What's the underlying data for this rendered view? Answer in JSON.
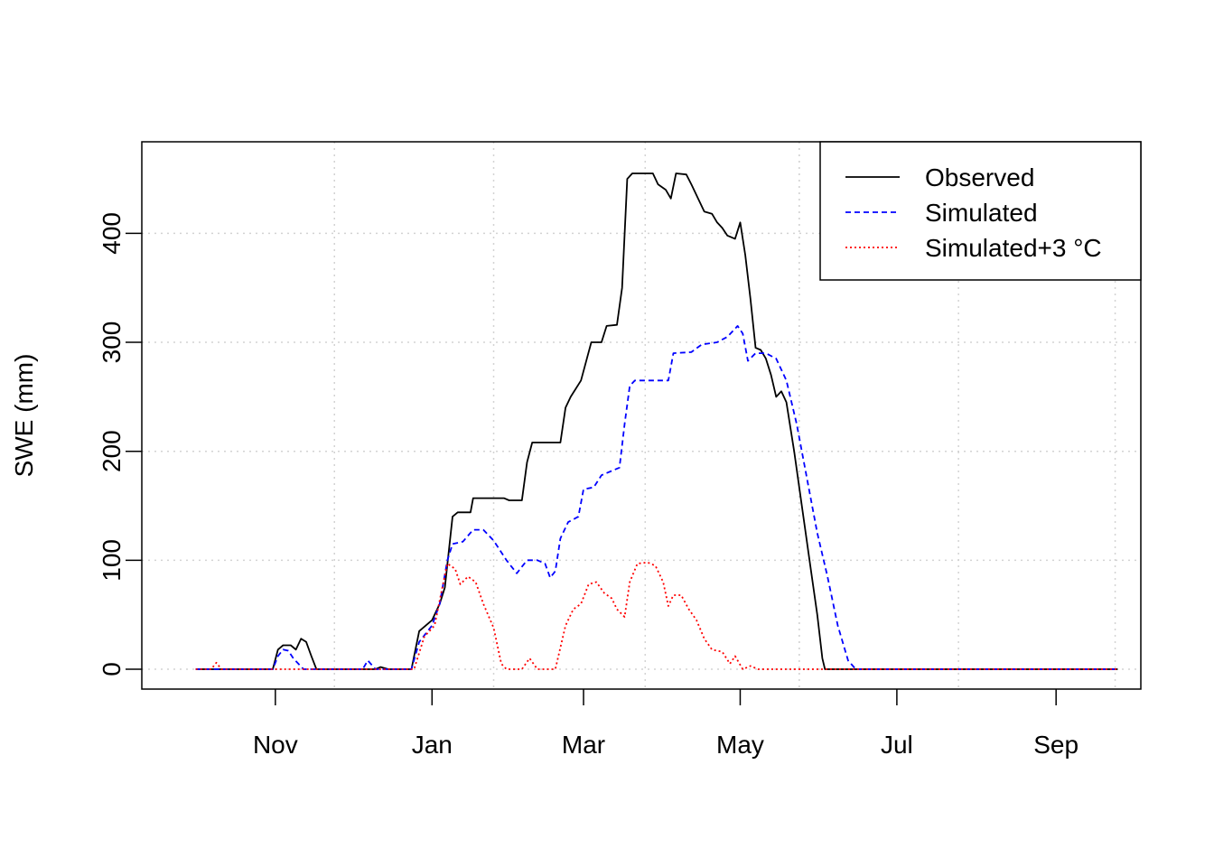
{
  "chart_data": {
    "type": "line",
    "xlabel": "",
    "ylabel": "SWE (mm)",
    "ylim": [
      0,
      460
    ],
    "yticks": [
      0,
      100,
      200,
      300,
      400
    ],
    "xlim": [
      "2000-09-10",
      "2001-10-04"
    ],
    "x_ticks": [
      {
        "label": "Nov",
        "date": "2000-11-01"
      },
      {
        "label": "Jan",
        "date": "2001-01-01"
      },
      {
        "label": "Mar",
        "date": "2001-03-01"
      },
      {
        "label": "May",
        "date": "2001-05-01"
      },
      {
        "label": "Jul",
        "date": "2001-07-01"
      },
      {
        "label": "Sep",
        "date": "2001-09-01"
      }
    ],
    "grid": true,
    "legend_position": "top-right",
    "series": [
      {
        "name": "Observed",
        "color": "#000000",
        "dash": "solid",
        "points": [
          [
            "2000-10-01",
            0
          ],
          [
            "2000-10-31",
            0
          ],
          [
            "2000-11-02",
            18
          ],
          [
            "2000-11-04",
            22
          ],
          [
            "2000-11-07",
            22
          ],
          [
            "2000-11-09",
            18
          ],
          [
            "2000-11-11",
            28
          ],
          [
            "2000-11-13",
            25
          ],
          [
            "2000-11-15",
            12
          ],
          [
            "2000-11-17",
            0
          ],
          [
            "2000-12-10",
            0
          ],
          [
            "2000-12-12",
            2
          ],
          [
            "2000-12-15",
            0
          ],
          [
            "2000-12-18",
            0
          ],
          [
            "2000-12-24",
            0
          ],
          [
            "2000-12-27",
            35
          ],
          [
            "2001-01-01",
            45
          ],
          [
            "2001-01-04",
            60
          ],
          [
            "2001-01-06",
            75
          ],
          [
            "2001-01-09",
            140
          ],
          [
            "2001-01-11",
            144
          ],
          [
            "2001-01-16",
            144
          ],
          [
            "2001-01-17",
            157
          ],
          [
            "2001-01-29",
            157
          ],
          [
            "2001-01-31",
            155
          ],
          [
            "2001-02-05",
            155
          ],
          [
            "2001-02-07",
            190
          ],
          [
            "2001-02-09",
            208
          ],
          [
            "2001-02-20",
            208
          ],
          [
            "2001-02-22",
            240
          ],
          [
            "2001-02-24",
            250
          ],
          [
            "2001-02-28",
            265
          ],
          [
            "2001-03-04",
            300
          ],
          [
            "2001-03-08",
            300
          ],
          [
            "2001-03-10",
            315
          ],
          [
            "2001-03-14",
            316
          ],
          [
            "2001-03-16",
            350
          ],
          [
            "2001-03-18",
            450
          ],
          [
            "2001-03-20",
            455
          ],
          [
            "2001-03-28",
            455
          ],
          [
            "2001-03-30",
            445
          ],
          [
            "2001-04-02",
            440
          ],
          [
            "2001-04-04",
            432
          ],
          [
            "2001-04-06",
            455
          ],
          [
            "2001-04-10",
            454
          ],
          [
            "2001-04-12",
            445
          ],
          [
            "2001-04-15",
            430
          ],
          [
            "2001-04-17",
            420
          ],
          [
            "2001-04-20",
            418
          ],
          [
            "2001-04-22",
            410
          ],
          [
            "2001-04-24",
            405
          ],
          [
            "2001-04-26",
            398
          ],
          [
            "2001-04-29",
            395
          ],
          [
            "2001-05-01",
            410
          ],
          [
            "2001-05-03",
            380
          ],
          [
            "2001-05-05",
            340
          ],
          [
            "2001-05-07",
            295
          ],
          [
            "2001-05-09",
            293
          ],
          [
            "2001-05-11",
            285
          ],
          [
            "2001-05-13",
            270
          ],
          [
            "2001-05-15",
            250
          ],
          [
            "2001-05-17",
            255
          ],
          [
            "2001-05-19",
            245
          ],
          [
            "2001-05-22",
            200
          ],
          [
            "2001-05-25",
            150
          ],
          [
            "2001-05-28",
            100
          ],
          [
            "2001-05-31",
            50
          ],
          [
            "2001-06-02",
            10
          ],
          [
            "2001-06-03",
            0
          ],
          [
            "2001-09-25",
            0
          ]
        ]
      },
      {
        "name": "Simulated",
        "color": "#0000ff",
        "dash": "dashed",
        "points": [
          [
            "2000-10-01",
            0
          ],
          [
            "2000-10-31",
            0
          ],
          [
            "2000-11-02",
            12
          ],
          [
            "2000-11-04",
            18
          ],
          [
            "2000-11-06",
            17
          ],
          [
            "2000-11-08",
            10
          ],
          [
            "2000-11-10",
            5
          ],
          [
            "2000-11-12",
            0
          ],
          [
            "2000-12-05",
            0
          ],
          [
            "2000-12-07",
            8
          ],
          [
            "2000-12-10",
            0
          ],
          [
            "2000-12-24",
            0
          ],
          [
            "2000-12-27",
            25
          ],
          [
            "2001-01-01",
            40
          ],
          [
            "2001-01-04",
            60
          ],
          [
            "2001-01-07",
            100
          ],
          [
            "2001-01-09",
            115
          ],
          [
            "2001-01-13",
            117
          ],
          [
            "2001-01-17",
            128
          ],
          [
            "2001-01-21",
            128
          ],
          [
            "2001-01-25",
            118
          ],
          [
            "2001-01-30",
            100
          ],
          [
            "2001-02-03",
            88
          ],
          [
            "2001-02-07",
            100
          ],
          [
            "2001-02-11",
            100
          ],
          [
            "2001-02-14",
            97
          ],
          [
            "2001-02-16",
            84
          ],
          [
            "2001-02-18",
            90
          ],
          [
            "2001-02-20",
            120
          ],
          [
            "2001-02-23",
            135
          ],
          [
            "2001-02-27",
            140
          ],
          [
            "2001-03-01",
            165
          ],
          [
            "2001-03-05",
            167
          ],
          [
            "2001-03-08",
            178
          ],
          [
            "2001-03-12",
            182
          ],
          [
            "2001-03-15",
            185
          ],
          [
            "2001-03-17",
            225
          ],
          [
            "2001-03-19",
            260
          ],
          [
            "2001-03-21",
            265
          ],
          [
            "2001-03-28",
            265
          ],
          [
            "2001-04-03",
            265
          ],
          [
            "2001-04-05",
            290
          ],
          [
            "2001-04-12",
            291
          ],
          [
            "2001-04-16",
            298
          ],
          [
            "2001-04-22",
            300
          ],
          [
            "2001-04-26",
            305
          ],
          [
            "2001-04-28",
            310
          ],
          [
            "2001-04-30",
            315
          ],
          [
            "2001-05-02",
            308
          ],
          [
            "2001-05-04",
            283
          ],
          [
            "2001-05-07",
            290
          ],
          [
            "2001-05-11",
            290
          ],
          [
            "2001-05-15",
            285
          ],
          [
            "2001-05-19",
            265
          ],
          [
            "2001-05-23",
            225
          ],
          [
            "2001-05-27",
            175
          ],
          [
            "2001-05-31",
            125
          ],
          [
            "2001-06-04",
            85
          ],
          [
            "2001-06-08",
            40
          ],
          [
            "2001-06-12",
            8
          ],
          [
            "2001-06-15",
            0
          ],
          [
            "2001-09-25",
            0
          ]
        ]
      },
      {
        "name": "Simulated+3 °C",
        "color": "#ff0000",
        "dash": "dotted",
        "points": [
          [
            "2000-10-01",
            0
          ],
          [
            "2000-10-07",
            0
          ],
          [
            "2000-10-09",
            6
          ],
          [
            "2000-10-11",
            0
          ],
          [
            "2000-12-25",
            0
          ],
          [
            "2000-12-29",
            30
          ],
          [
            "2001-01-02",
            40
          ],
          [
            "2001-01-05",
            75
          ],
          [
            "2001-01-07",
            97
          ],
          [
            "2001-01-10",
            92
          ],
          [
            "2001-01-12",
            78
          ],
          [
            "2001-01-15",
            85
          ],
          [
            "2001-01-18",
            80
          ],
          [
            "2001-01-21",
            60
          ],
          [
            "2001-01-25",
            38
          ],
          [
            "2001-01-28",
            5
          ],
          [
            "2001-01-30",
            0
          ],
          [
            "2001-02-05",
            0
          ],
          [
            "2001-02-08",
            10
          ],
          [
            "2001-02-11",
            0
          ],
          [
            "2001-02-18",
            0
          ],
          [
            "2001-02-22",
            40
          ],
          [
            "2001-02-25",
            55
          ],
          [
            "2001-02-28",
            60
          ],
          [
            "2001-03-03",
            78
          ],
          [
            "2001-03-06",
            80
          ],
          [
            "2001-03-09",
            70
          ],
          [
            "2001-03-12",
            65
          ],
          [
            "2001-03-14",
            55
          ],
          [
            "2001-03-17",
            48
          ],
          [
            "2001-03-19",
            80
          ],
          [
            "2001-03-22",
            97
          ],
          [
            "2001-03-26",
            98
          ],
          [
            "2001-03-29",
            95
          ],
          [
            "2001-04-01",
            80
          ],
          [
            "2001-04-03",
            58
          ],
          [
            "2001-04-05",
            68
          ],
          [
            "2001-04-08",
            68
          ],
          [
            "2001-04-11",
            55
          ],
          [
            "2001-04-14",
            45
          ],
          [
            "2001-04-17",
            28
          ],
          [
            "2001-04-20",
            18
          ],
          [
            "2001-04-24",
            16
          ],
          [
            "2001-04-27",
            5
          ],
          [
            "2001-04-29",
            12
          ],
          [
            "2001-05-02",
            0
          ],
          [
            "2001-05-05",
            3
          ],
          [
            "2001-05-08",
            0
          ],
          [
            "2001-09-25",
            0
          ]
        ]
      }
    ]
  }
}
